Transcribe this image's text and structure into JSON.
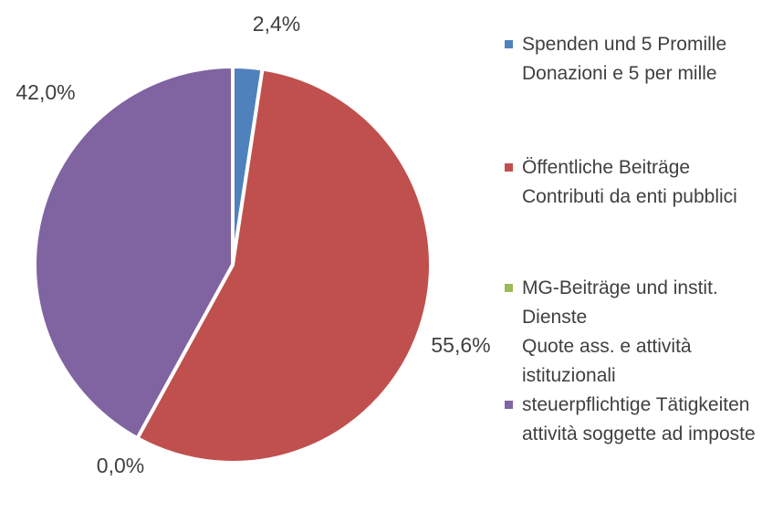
{
  "chart_data": {
    "type": "pie",
    "categories": [
      "Spenden und 5 Promille\nDonazioni e 5 per mille",
      "Öffentliche Beiträge\nContributi da enti pubblici",
      "MG-Beiträge und instit. Dienste\nQuote ass. e attività istituzionali",
      "steuerpflichtige Tätigkeiten\nattività soggette ad imposte"
    ],
    "values": [
      2.4,
      55.6,
      0.0,
      42.0
    ],
    "value_labels": [
      "2,4%",
      "55,6%",
      "0,0%",
      "42,0%"
    ],
    "colors": [
      "#4f81bd",
      "#c0504d",
      "#9bbb59",
      "#8064a2"
    ],
    "legend": "right"
  }
}
